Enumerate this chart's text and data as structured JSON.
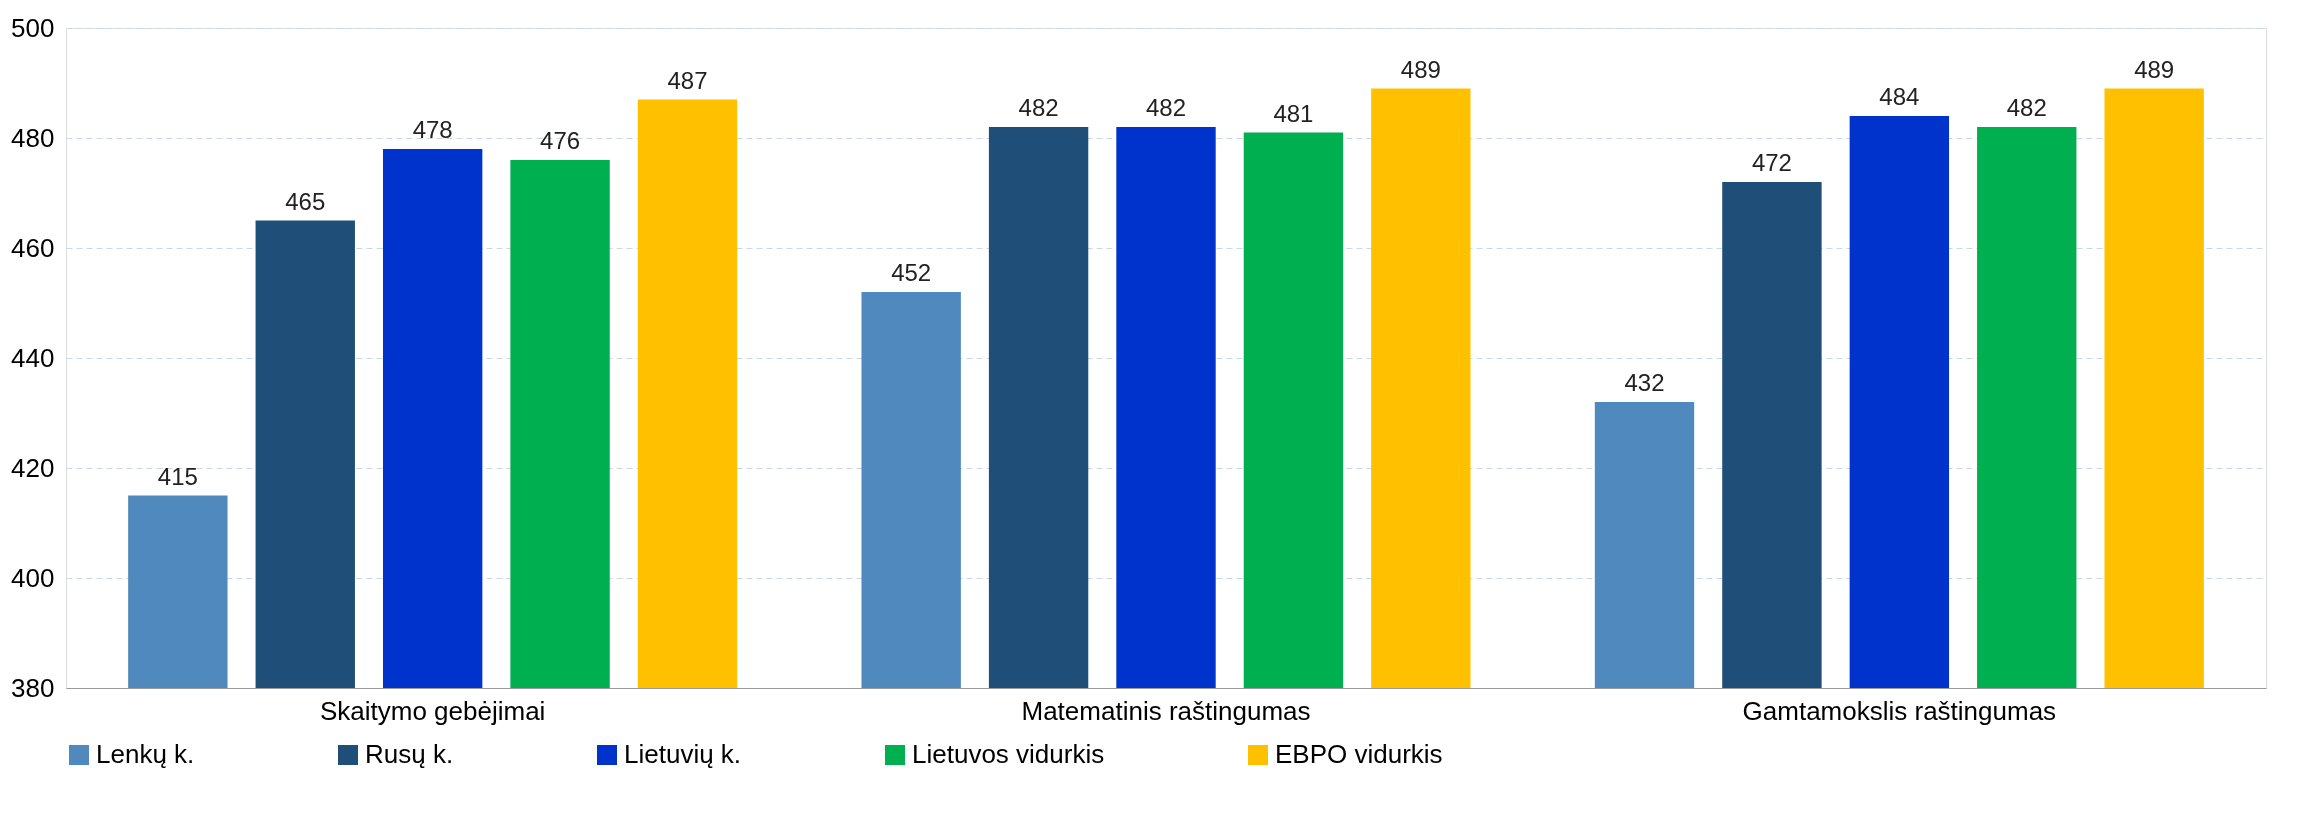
{
  "chart_data": {
    "type": "bar",
    "categories": [
      "Skaitymo gebėjimai",
      "Matematinis raštingumas",
      "Gamtamokslis raštingumas"
    ],
    "series": [
      {
        "name": "Lenkų k.",
        "color": "#4f89bd",
        "values": [
          415,
          452,
          432
        ]
      },
      {
        "name": "Rusų k.",
        "color": "#1f4e79",
        "values": [
          465,
          482,
          472
        ]
      },
      {
        "name": "Lietuvių k.",
        "color": "#0033cc",
        "values": [
          478,
          482,
          484
        ]
      },
      {
        "name": "Lietuvos vidurkis",
        "color": "#00b050",
        "values": [
          476,
          481,
          482
        ]
      },
      {
        "name": "EBPO vidurkis",
        "color": "#ffc000",
        "values": [
          487,
          489,
          489
        ]
      }
    ],
    "ylim": [
      380,
      500
    ],
    "yticks": [
      380,
      400,
      420,
      440,
      460,
      480,
      500
    ],
    "grid": "y",
    "legend": "bottom",
    "data_labels": true
  }
}
